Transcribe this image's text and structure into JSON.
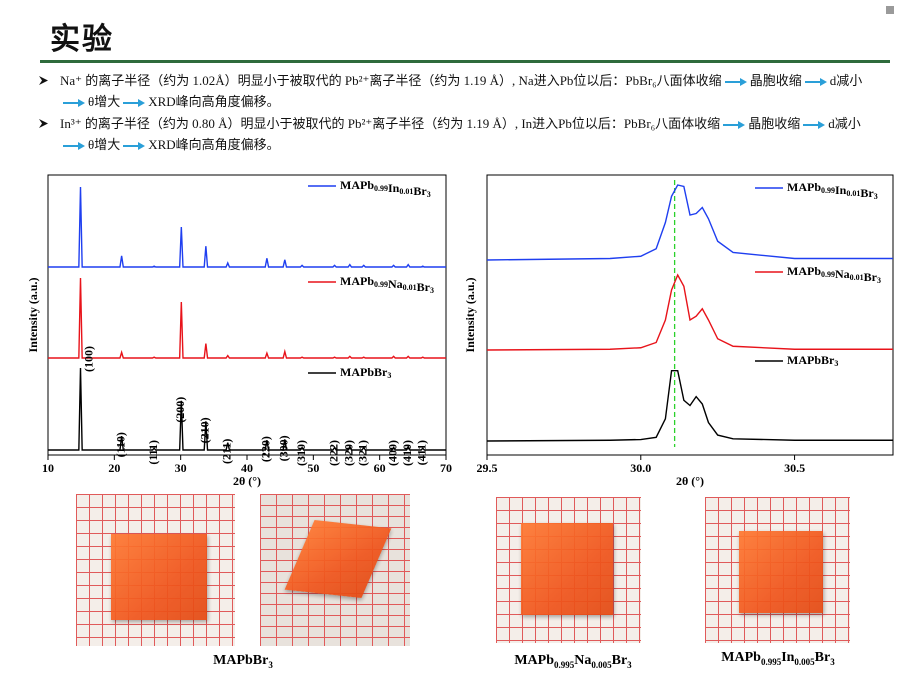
{
  "header": {
    "title": "实验"
  },
  "bullets": [
    [
      "Na⁺ 的离子半径（约为 1.02Å）明显小于被取代的 Pb²⁺离子半径（约为 1.19 Å）, Na进入Pb位以后：PbBr₆八面体收缩",
      "晶胞收缩",
      "d减小",
      "θ增大",
      "XRD峰向高角度偏移。"
    ],
    [
      "In³⁺ 的离子半径（约为 0.80 Å）明显小于被取代的 Pb²⁺离子半径（约为 1.19 Å）, In进入Pb位以后：PbBr₆八面体收缩",
      "晶胞收缩",
      "d减小",
      "θ增大",
      "XRD峰向高角度偏移。"
    ]
  ],
  "chart_data": [
    {
      "type": "line",
      "xlabel": "2θ (°)",
      "ylabel": "Intensity (a.u.)",
      "xlim": [
        10,
        70
      ],
      "xticks": [
        10,
        20,
        30,
        40,
        50,
        60,
        70
      ],
      "x": [
        10,
        14.65,
        14.9,
        15.15,
        20.85,
        21.1,
        21.35,
        25.75,
        26,
        26.25,
        29.85,
        30.1,
        30.35,
        33.55,
        33.8,
        34.05,
        36.85,
        37.1,
        37.35,
        42.75,
        43,
        43.25,
        45.45,
        45.7,
        45.95,
        48.05,
        48.3,
        48.55,
        52.95,
        53.2,
        53.45,
        55.25,
        55.5,
        55.75,
        57.35,
        57.6,
        57.85,
        61.85,
        62.1,
        62.35,
        64.05,
        64.3,
        64.55,
        66.25,
        66.5,
        66.75,
        70
      ],
      "series": [
        {
          "name": "MAPb0.99In0.01Br3",
          "color": "#1f3ff0",
          "values": [
            0,
            0,
            100,
            0,
            0,
            14,
            0,
            0,
            1,
            0,
            0,
            50,
            0,
            0,
            26,
            0,
            0,
            5,
            0,
            0,
            11,
            0,
            0,
            9,
            0,
            0,
            2,
            0,
            0,
            2,
            0,
            0,
            3,
            0,
            0,
            2,
            0,
            0,
            2,
            0,
            0,
            3,
            0,
            0,
            1,
            0,
            0
          ]
        },
        {
          "name": "MAPb0.99Na0.01Br3",
          "color": "#e8131a",
          "values": [
            0,
            0,
            100,
            0,
            0,
            7,
            0,
            0,
            1,
            0,
            0,
            70,
            0,
            0,
            18,
            0,
            0,
            3,
            0,
            0,
            6,
            0,
            0,
            8,
            0,
            0,
            1,
            0,
            0,
            1,
            0,
            0,
            2,
            0,
            0,
            1,
            0,
            0,
            2,
            0,
            0,
            2,
            0,
            0,
            1,
            0,
            0
          ]
        },
        {
          "name": "MAPbBr3",
          "color": "#000000",
          "values": [
            0,
            0,
            100,
            0,
            0,
            17,
            0,
            0,
            2,
            0,
            0,
            60,
            0,
            0,
            35,
            0,
            0,
            9,
            0,
            0,
            12,
            0,
            0,
            13,
            0,
            0,
            3,
            0,
            0,
            3,
            0,
            0,
            4,
            0,
            0,
            3,
            0,
            0,
            3,
            0,
            0,
            4,
            0,
            0,
            2,
            0,
            0
          ]
        }
      ],
      "peak_labels": [
        "(100)",
        "(110)",
        "(111)",
        "(200)",
        "(210)",
        "(211)",
        "(220)",
        "(300)",
        "(310)",
        "(222)",
        "(320)",
        "(321)",
        "(400)",
        "(410)",
        "(411)"
      ]
    },
    {
      "type": "line",
      "xlabel": "2θ (°)",
      "ylabel": "Intensity (a.u.)",
      "xlim": [
        29.5,
        30.82
      ],
      "xticks": [
        29.5,
        {
          "value": 30,
          "label": "30.0"
        },
        30.5
      ],
      "reference_line": {
        "value": 30.11,
        "color": "#2bd12b"
      },
      "x": [
        29.5,
        29.9,
        30.0,
        30.05,
        30.08,
        30.1,
        30.12,
        30.14,
        30.16,
        30.18,
        30.2,
        30.22,
        30.25,
        30.3,
        30.5,
        30.82
      ],
      "series": [
        {
          "name": "MAPb0.99In0.01Br3",
          "color": "#1f3ff0",
          "values": [
            0,
            2,
            5,
            15,
            50,
            85,
            100,
            98,
            60,
            62,
            70,
            55,
            25,
            10,
            2,
            2
          ]
        },
        {
          "name": "MAPb0.99Na0.01Br3",
          "color": "#e8131a",
          "values": [
            0,
            1,
            3,
            10,
            40,
            80,
            100,
            85,
            40,
            45,
            55,
            40,
            15,
            5,
            1,
            1
          ]
        },
        {
          "name": "MAPbBr3",
          "color": "#000000",
          "values": [
            0,
            1,
            2,
            5,
            30,
            95,
            95,
            55,
            48,
            60,
            50,
            25,
            8,
            3,
            1,
            1
          ]
        }
      ]
    }
  ],
  "photos": {
    "captions": [
      "MAPbBr3",
      "MAPb0.995Na0.005Br3",
      "MAPb0.995In0.005Br3"
    ]
  }
}
